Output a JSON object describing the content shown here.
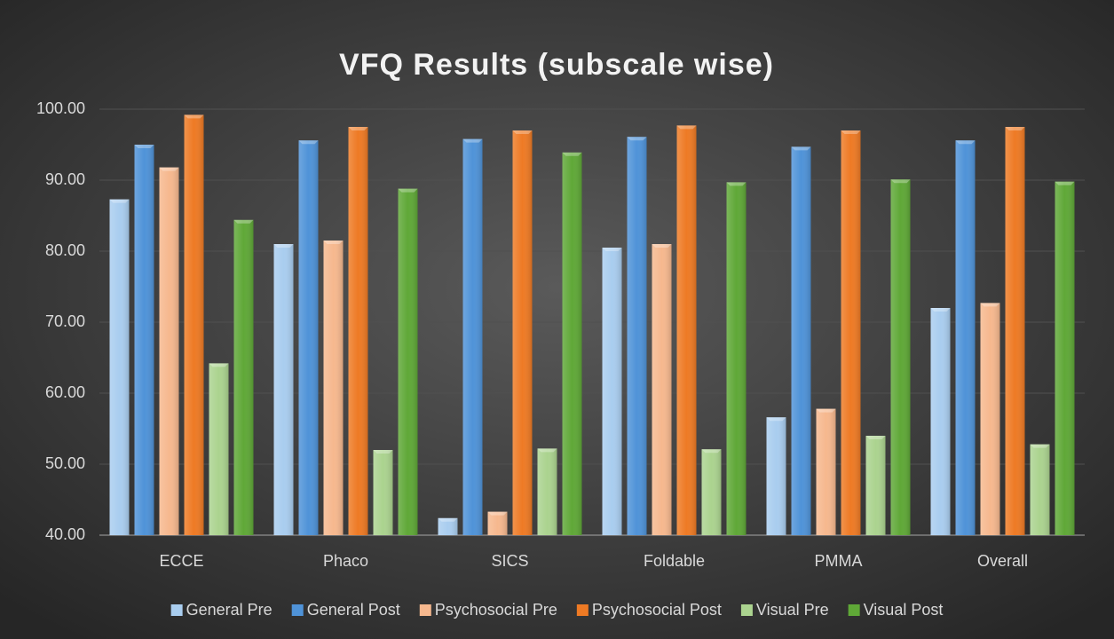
{
  "chart_data": {
    "type": "bar",
    "title": "VFQ Results (subscale wise)",
    "categories": [
      "ECCE",
      "Phaco",
      "SICS",
      "Foldable",
      "PMMA",
      "Overall"
    ],
    "series": [
      {
        "name": "General Pre",
        "color": "#a9cdef",
        "values": [
          87.3,
          81.0,
          42.4,
          80.5,
          56.6,
          72.0
        ]
      },
      {
        "name": "General Post",
        "color": "#4f93d8",
        "values": [
          95.0,
          95.6,
          95.8,
          96.1,
          94.7,
          95.6
        ]
      },
      {
        "name": "Psychosocial Pre",
        "color": "#f6b88e",
        "values": [
          91.8,
          81.5,
          43.3,
          81.0,
          57.8,
          72.7
        ]
      },
      {
        "name": "Psychosocial Post",
        "color": "#ee7a24",
        "values": [
          99.2,
          97.5,
          97.0,
          97.7,
          97.0,
          97.5
        ]
      },
      {
        "name": "Visual Pre",
        "color": "#abd38f",
        "values": [
          64.2,
          52.0,
          52.2,
          52.1,
          54.0,
          52.8
        ]
      },
      {
        "name": "Visual Post",
        "color": "#5fa837",
        "values": [
          84.4,
          88.8,
          93.9,
          89.7,
          90.1,
          89.8
        ]
      }
    ],
    "ylim": [
      40,
      100
    ],
    "yticks": [
      {
        "value": 40,
        "label": "40.00"
      },
      {
        "value": 50,
        "label": "50.00"
      },
      {
        "value": 60,
        "label": "60.00"
      },
      {
        "value": 70,
        "label": "70.00"
      },
      {
        "value": 80,
        "label": "80.00"
      },
      {
        "value": 90,
        "label": "90.00"
      },
      {
        "value": 100,
        "label": "100.00"
      }
    ],
    "grid": true,
    "legend": "bottom"
  }
}
